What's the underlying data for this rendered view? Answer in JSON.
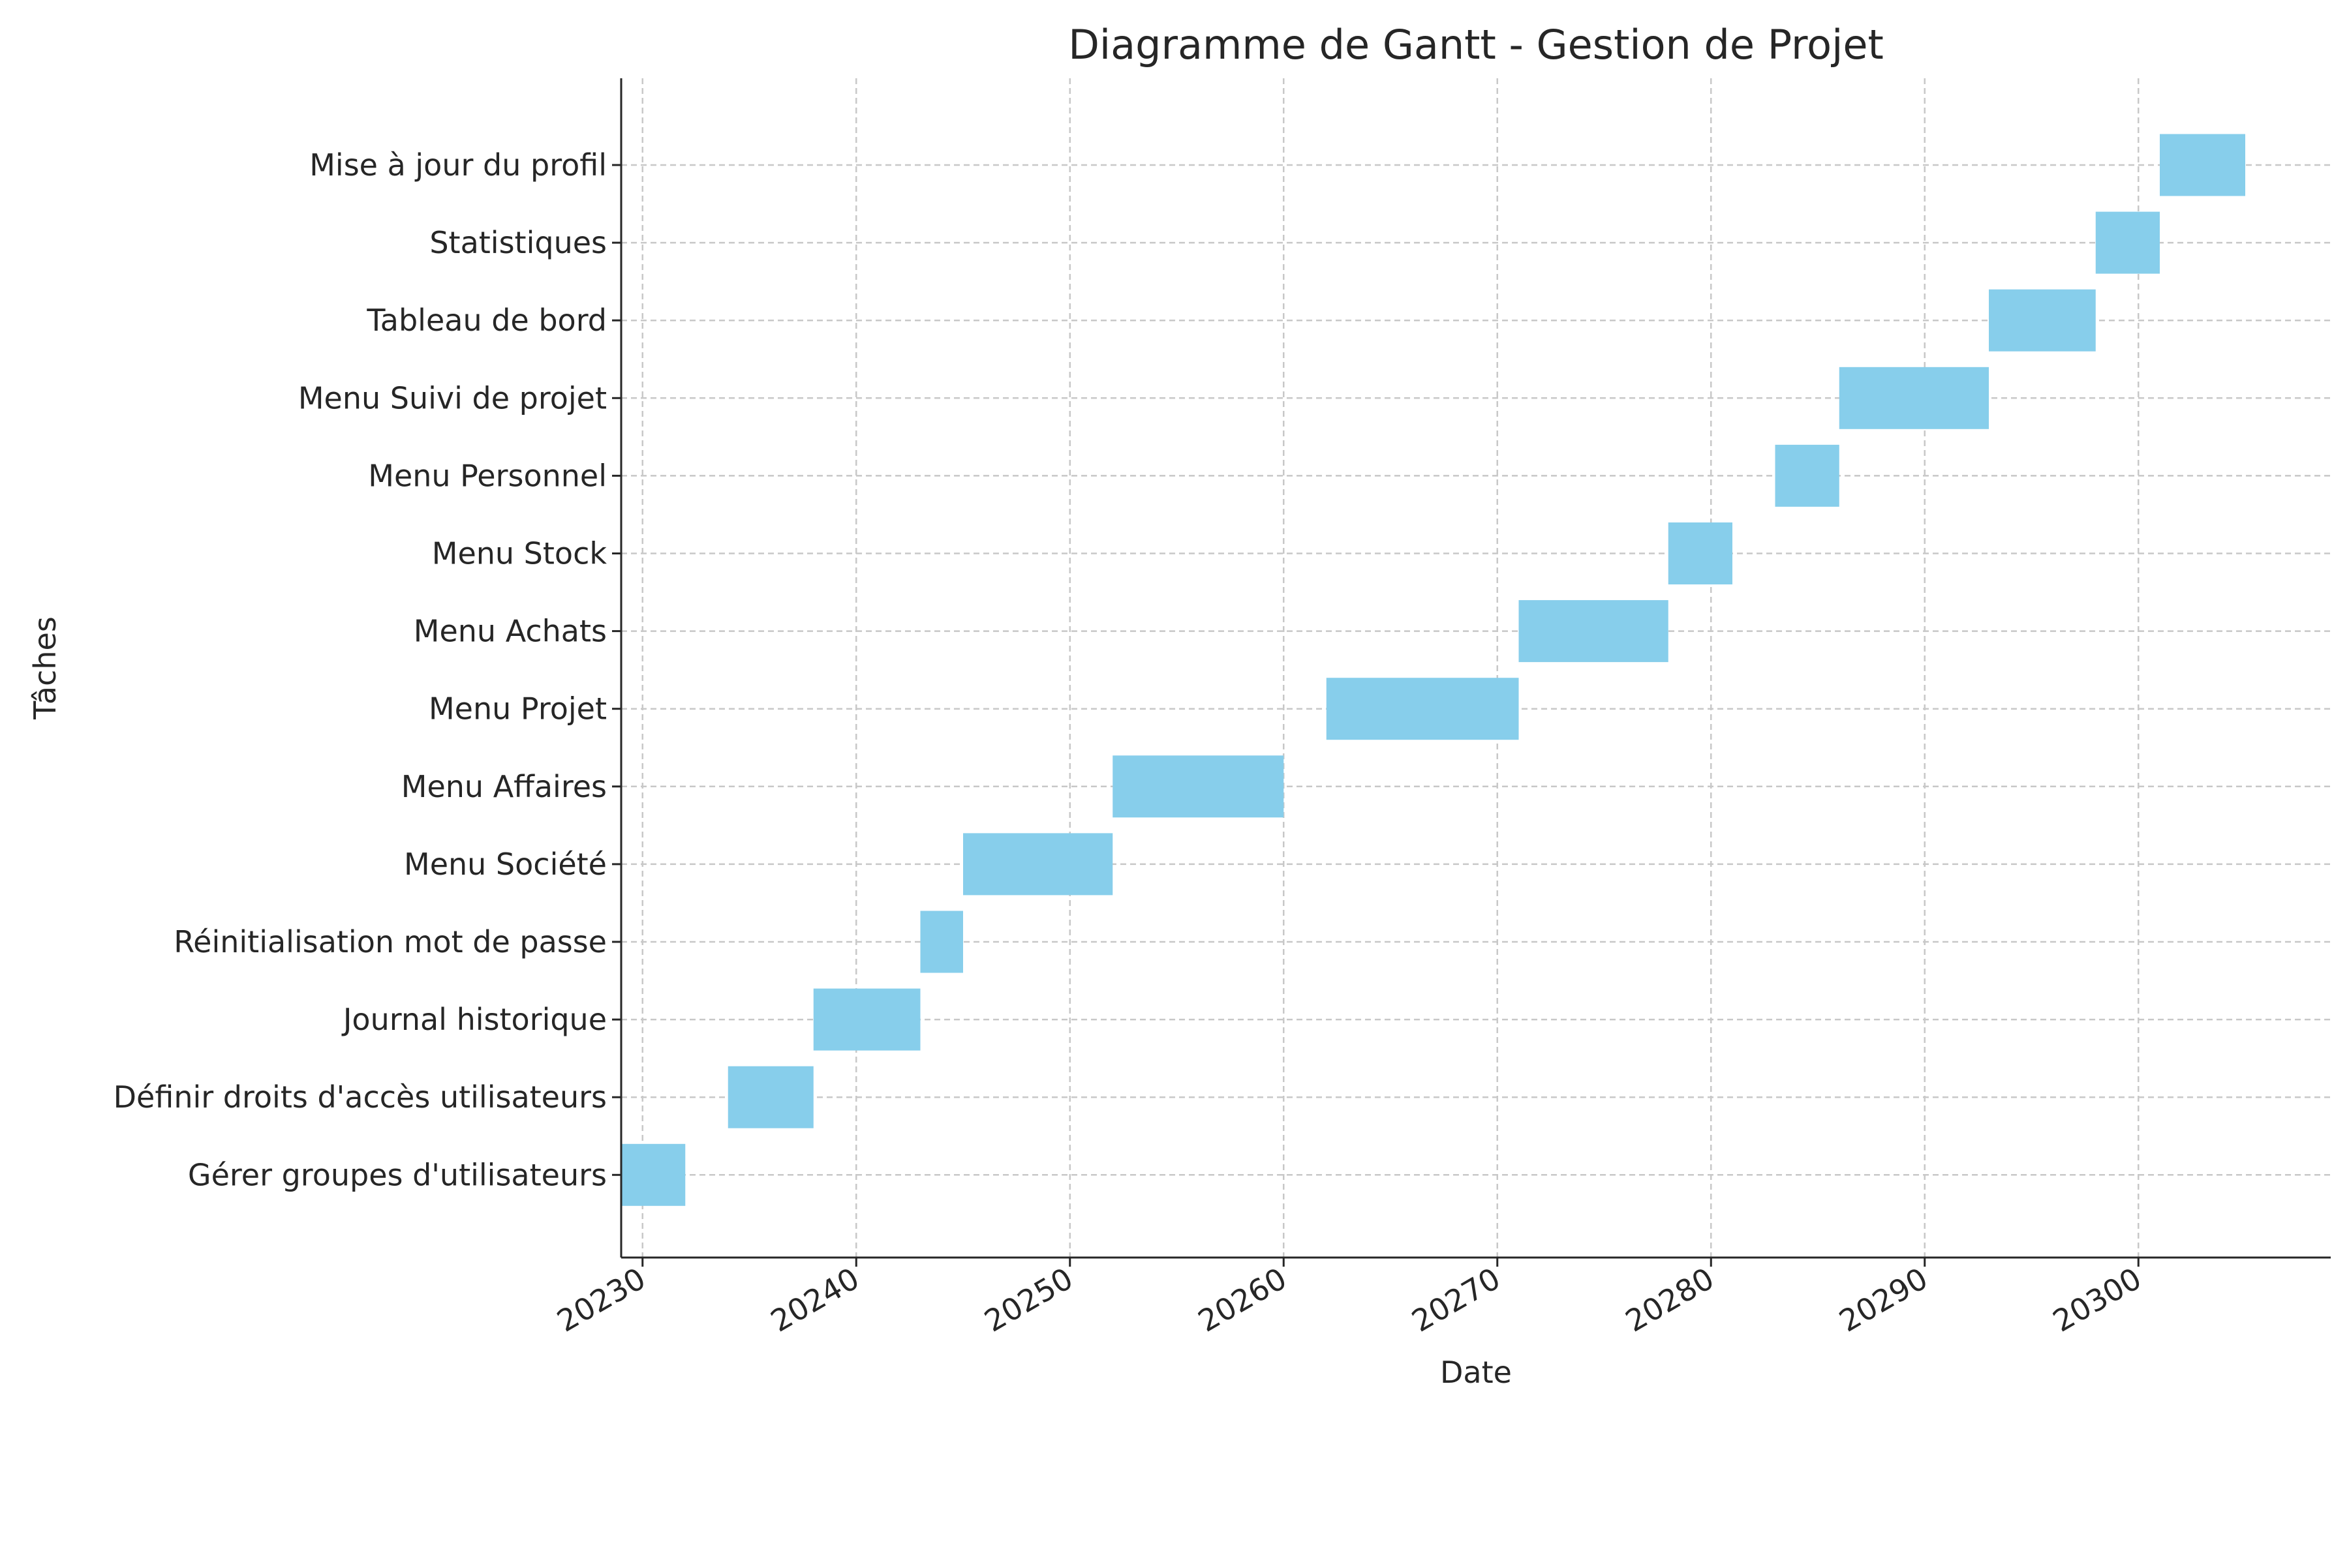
{
  "chart_data": {
    "type": "gantt",
    "title": "Diagramme de Gantt - Gestion de Projet",
    "xlabel": "Date",
    "ylabel": "Tâches",
    "x_ticks": [
      20230,
      20240,
      20250,
      20260,
      20270,
      20280,
      20290,
      20300
    ],
    "xlim": [
      20229,
      20309
    ],
    "grid": true,
    "colors": {
      "bar": "#87ceeb",
      "grid": "#c8c8c8",
      "axis": "#262626",
      "text": "#262626"
    },
    "tasks": [
      {
        "name": "Gérer groupes d'utilisateurs",
        "start": 20229,
        "end": 20232
      },
      {
        "name": "Définir droits d'accès utilisateurs",
        "start": 20234,
        "end": 20238
      },
      {
        "name": "Journal historique",
        "start": 20238,
        "end": 20243
      },
      {
        "name": "Réinitialisation mot de passe",
        "start": 20243,
        "end": 20245
      },
      {
        "name": "Menu Société",
        "start": 20245,
        "end": 20252
      },
      {
        "name": "Menu Affaires",
        "start": 20252,
        "end": 20260
      },
      {
        "name": "Menu Projet",
        "start": 20262,
        "end": 20271
      },
      {
        "name": "Menu Achats",
        "start": 20271,
        "end": 20278
      },
      {
        "name": "Menu Stock",
        "start": 20278,
        "end": 20281
      },
      {
        "name": "Menu Personnel",
        "start": 20283,
        "end": 20286
      },
      {
        "name": "Menu Suivi de projet",
        "start": 20286,
        "end": 20293
      },
      {
        "name": "Tableau de bord",
        "start": 20293,
        "end": 20298
      },
      {
        "name": "Statistiques",
        "start": 20298,
        "end": 20301
      },
      {
        "name": "Mise à jour du profil",
        "start": 20301,
        "end": 20305
      }
    ]
  }
}
